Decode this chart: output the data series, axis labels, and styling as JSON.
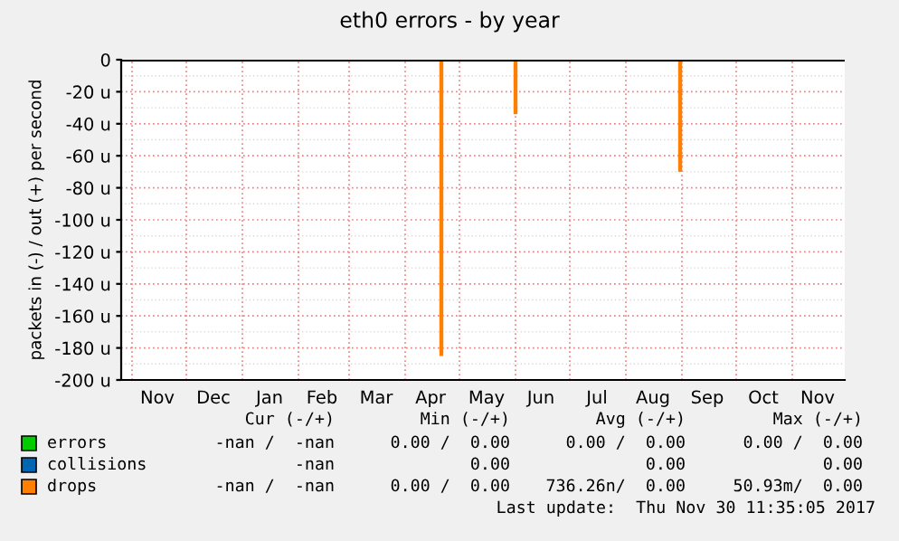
{
  "chart_data": {
    "type": "bar",
    "title": "eth0 errors - by year",
    "ylabel": "packets in (-) / out (+) per second",
    "x": [
      "2017-04-21",
      "2017-06-01",
      "2017-08-31"
    ],
    "series": [
      {
        "name": "errors",
        "color": "#00cc00",
        "values": [
          null,
          null,
          null
        ]
      },
      {
        "name": "collisions",
        "color": "#0066b3",
        "values": [
          null,
          null,
          null
        ]
      },
      {
        "name": "drops",
        "color": "#ff8000",
        "values": [
          -185,
          -34,
          -70
        ]
      }
    ],
    "xlim": [
      "2016-10-26",
      "2017-11-30"
    ],
    "xticks": [
      {
        "value": "2016-11-15",
        "label": "Nov"
      },
      {
        "value": "2016-12-16",
        "label": "Dec"
      },
      {
        "value": "2017-01-16",
        "label": "Jan"
      },
      {
        "value": "2017-02-14",
        "label": "Feb"
      },
      {
        "value": "2017-03-16",
        "label": "Mar"
      },
      {
        "value": "2017-04-15",
        "label": "Apr"
      },
      {
        "value": "2017-05-16",
        "label": "May"
      },
      {
        "value": "2017-06-15",
        "label": "Jun"
      },
      {
        "value": "2017-07-16",
        "label": "Jul"
      },
      {
        "value": "2017-08-16",
        "label": "Aug"
      },
      {
        "value": "2017-09-15",
        "label": "Sep"
      },
      {
        "value": "2017-10-16",
        "label": "Oct"
      },
      {
        "value": "2017-11-15",
        "label": "Nov"
      }
    ],
    "ylim": [
      -200,
      0
    ],
    "yticks": [
      {
        "value": 0,
        "label": "0"
      },
      {
        "value": -20,
        "label": "-20 u"
      },
      {
        "value": -40,
        "label": "-40 u"
      },
      {
        "value": -60,
        "label": "-60 u"
      },
      {
        "value": -80,
        "label": "-80 u"
      },
      {
        "value": -100,
        "label": "-100 u"
      },
      {
        "value": -120,
        "label": "-120 u"
      },
      {
        "value": -140,
        "label": "-140 u"
      },
      {
        "value": -160,
        "label": "-160 u"
      },
      {
        "value": -180,
        "label": "-180 u"
      },
      {
        "value": -200,
        "label": "-200 u"
      }
    ],
    "grid": true,
    "legend": "bottom",
    "annotations": [
      "Cur (-/+)",
      "Min (-/+)",
      "Avg (-/+)",
      "Max (-/+)",
      "-nan /  -nan",
      "0.00 /  0.00",
      "0.00 /  0.00",
      "0.00 /  0.00",
      "-nan",
      "0.00",
      "0.00",
      "0.00",
      "-nan /  -nan",
      "0.00 /  0.00",
      "736.26n/  0.00",
      "50.93m/  0.00",
      "Last update:  Thu Nov 30 11:35:05 2017"
    ]
  }
}
